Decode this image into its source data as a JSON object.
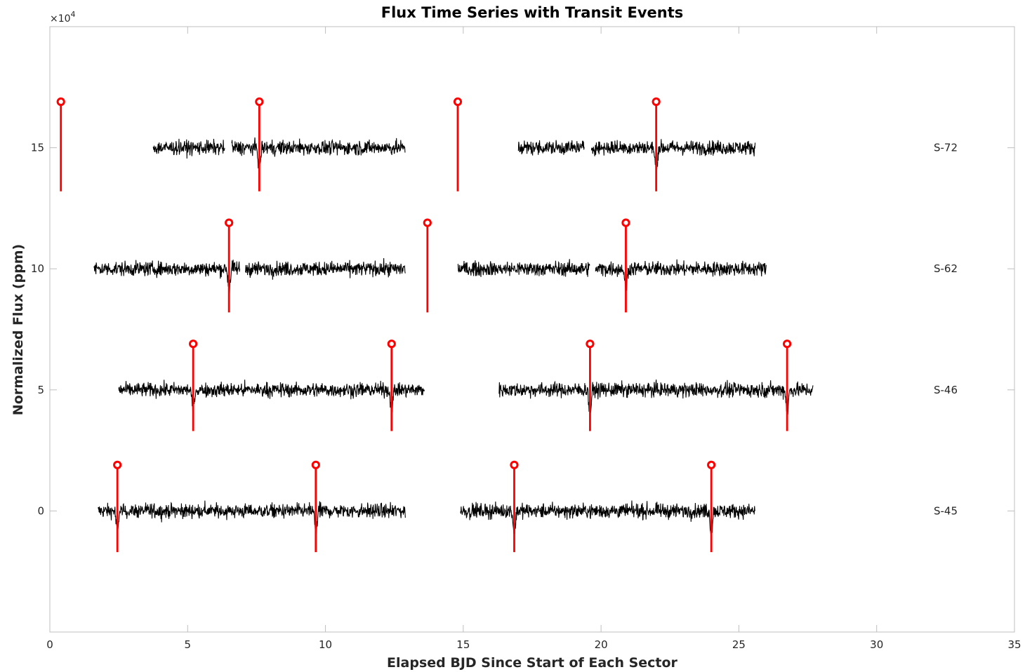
{
  "chart_data": {
    "type": "line",
    "title": "Flux Time Series with Transit Events",
    "xlabel": "Elapsed BJD Since Start of Each Sector",
    "ylabel": "Normalized Flux (ppm)",
    "y_exponent_label": "×10",
    "y_exponent_power": "4",
    "xlim": [
      0,
      35
    ],
    "ylim": [
      -50000,
      200000
    ],
    "x_ticks": [
      0,
      5,
      10,
      15,
      20,
      25,
      30,
      35
    ],
    "y_ticks": [
      0,
      50000,
      100000,
      150000
    ],
    "y_tick_labels": [
      "0",
      "5",
      "10",
      "15"
    ],
    "grid": false,
    "colors": {
      "flux": "#000000",
      "transit": "#ff0000",
      "axes": "#bfbfbf",
      "text": "#262626"
    },
    "series": [
      {
        "label": "S-45",
        "offset": 0,
        "segments": [
          [
            1.75,
            12.9
          ],
          [
            14.9,
            25.6
          ]
        ],
        "transits": [
          2.45,
          9.65,
          16.85,
          24.0
        ],
        "transit_depth": 10000,
        "marker_y": 19000,
        "line_bottom": -17000
      },
      {
        "label": "S-46",
        "offset": 50000,
        "segments": [
          [
            2.5,
            13.6
          ],
          [
            16.3,
            27.7
          ]
        ],
        "transits": [
          5.2,
          12.4,
          19.6,
          26.75
        ],
        "transit_depth": 10000,
        "marker_y": 69000,
        "line_bottom": 33000
      },
      {
        "label": "S-62",
        "offset": 100000,
        "segments": [
          [
            1.6,
            6.9
          ],
          [
            7.1,
            12.9
          ],
          [
            14.8,
            19.6
          ],
          [
            19.8,
            26.0
          ]
        ],
        "transits": [
          6.5,
          13.7,
          20.9
        ],
        "transit_depth": 10000,
        "marker_y": 119000,
        "line_bottom": 82000
      },
      {
        "label": "S-72",
        "offset": 150000,
        "segments": [
          [
            3.75,
            6.35
          ],
          [
            6.6,
            12.9
          ],
          [
            17.0,
            19.4
          ],
          [
            19.65,
            25.6
          ]
        ],
        "transits": [
          0.4,
          7.6,
          14.8,
          22.0
        ],
        "transit_depth": 10000,
        "marker_y": 169000,
        "line_bottom": 132000
      }
    ]
  }
}
